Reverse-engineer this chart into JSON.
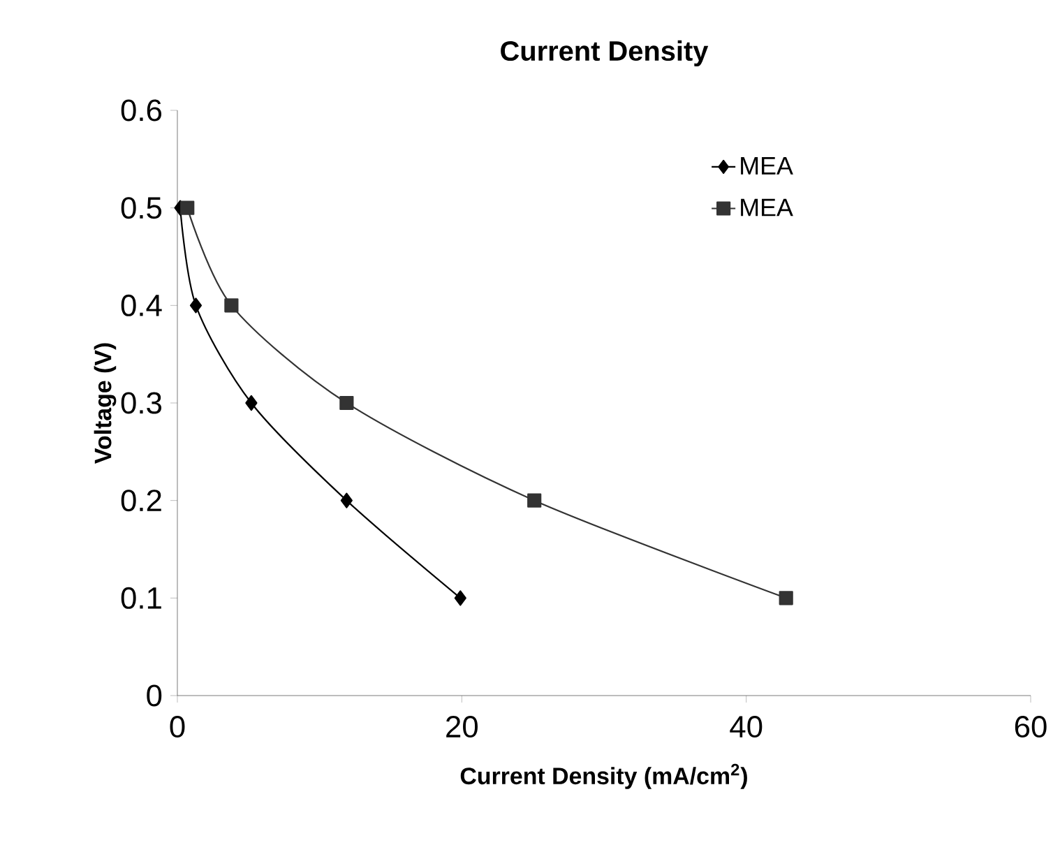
{
  "chart_data": {
    "type": "line",
    "title": "Current Density",
    "xlabel": "Current Density (mA/cm$^{2}$)",
    "ylabel": "Voltage (V)",
    "xlim": [
      0,
      60
    ],
    "xticks": [
      0,
      20,
      40,
      60
    ],
    "ylim": [
      0,
      0.6
    ],
    "yticks": [
      0,
      0.1,
      0.2,
      0.3,
      0.4,
      0.5,
      0.6
    ],
    "grid": false,
    "legend": "top right",
    "series": [
      {
        "name": "MEA",
        "color": "#000000",
        "marker": "diamond",
        "x": [
          0.2,
          1.3,
          5.2,
          11.9,
          19.9
        ],
        "values": [
          0.5,
          0.4,
          0.3,
          0.2,
          0.1
        ]
      },
      {
        "name": "MEA",
        "color": "#333333",
        "marker": "square",
        "x": [
          0.7,
          3.8,
          11.9,
          25.1,
          42.8
        ],
        "values": [
          0.5,
          0.4,
          0.3,
          0.2,
          0.1
        ]
      }
    ]
  }
}
